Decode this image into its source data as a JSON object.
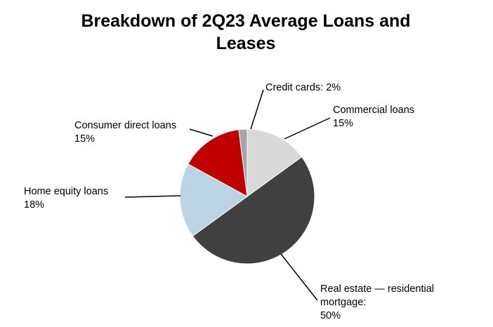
{
  "chart_data": {
    "type": "pie",
    "title": "Breakdown of 2Q23 Average Loans and Leases",
    "categories": [
      "Commercial loans",
      "Real estate — residential mortgage:",
      "Home equity loans",
      "Consumer direct loans",
      "Credit cards:"
    ],
    "values": [
      15,
      50,
      18,
      15,
      2
    ],
    "value_labels": [
      "15%",
      "50%",
      "18%",
      "15%",
      "2%"
    ],
    "colors": [
      "#d9d9d9",
      "#404040",
      "#bcd4e2",
      "#c00000",
      "#a6a6a6"
    ]
  }
}
